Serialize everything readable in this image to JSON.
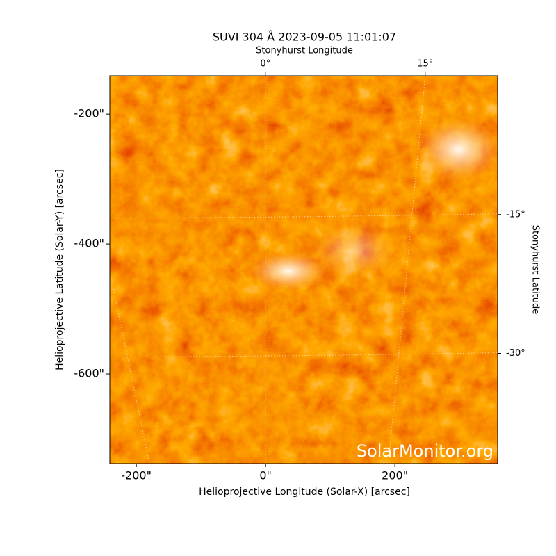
{
  "chart_data": {
    "type": "image",
    "title": "SUVI 304 Å 2023-09-05 11:01:07",
    "xlabel": "Helioprojective Longitude (Solar-X) [arcsec]",
    "ylabel": "Helioprojective Latitude (Solar-Y) [arcsec]",
    "x2label": "Stonyhurst Longitude",
    "y2label": "Stonyhurst Latitude",
    "watermark": "SolarMonitor.org",
    "xlim": [
      -241,
      359
    ],
    "ylim": [
      -738,
      -141
    ],
    "xticks": [
      {
        "value": -200,
        "label": "-200\""
      },
      {
        "value": 0,
        "label": "0\""
      },
      {
        "value": 200,
        "label": "200\""
      }
    ],
    "yticks": [
      {
        "value": -200,
        "label": "-200\""
      },
      {
        "value": -400,
        "label": "-400\""
      },
      {
        "value": -600,
        "label": "-600\""
      }
    ],
    "x2lim": [
      -14.6,
      21.8
    ],
    "x2ticks": [
      {
        "value": 0,
        "label": "0°"
      },
      {
        "value": 15,
        "label": "15°"
      }
    ],
    "y2lim": [
      -41.9,
      0
    ],
    "y2ticks": [
      {
        "value": -15,
        "label": "-15°"
      },
      {
        "value": -30,
        "label": "-30°"
      }
    ],
    "grid": true
  }
}
